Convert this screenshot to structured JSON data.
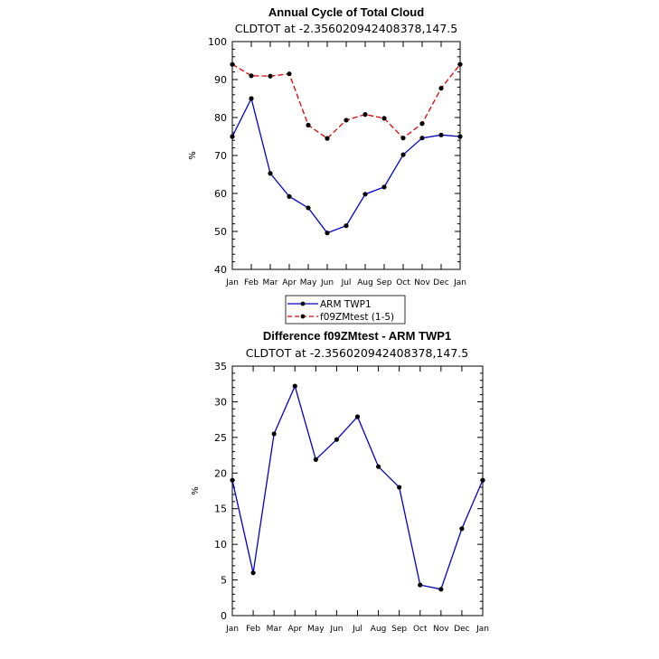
{
  "chart_data": [
    {
      "type": "line",
      "title": "Annual Cycle of Total Cloud",
      "subtitle": "CLDTOT at -2.356020942408378,147.5",
      "ylabel": "%",
      "ylim": [
        40,
        100
      ],
      "yticks": [
        40,
        50,
        60,
        70,
        80,
        90,
        100
      ],
      "categories": [
        "Jan",
        "Feb",
        "Mar",
        "Apr",
        "May",
        "Jun",
        "Jul",
        "Aug",
        "Sep",
        "Oct",
        "Nov",
        "Dec",
        "Jan"
      ],
      "series": [
        {
          "name": "ARM TWP1",
          "color": "#0000cc",
          "dash": "solid",
          "values": [
            75,
            85,
            65.3,
            59.2,
            56.2,
            49.6,
            51.5,
            59.8,
            61.7,
            70.2,
            74.6,
            75.4,
            75
          ]
        },
        {
          "name": "f09ZMtest (1-5)",
          "color": "#dd0000",
          "dash": "dashed",
          "values": [
            94,
            91,
            90.9,
            91.5,
            78,
            74.5,
            79.3,
            80.8,
            79.8,
            74.6,
            78.4,
            87.7,
            94
          ]
        }
      ],
      "legend_position": "below"
    },
    {
      "type": "line",
      "title": "Difference f09ZMtest - ARM TWP1",
      "subtitle": "CLDTOT at -2.356020942408378,147.5",
      "ylabel": "%",
      "ylim": [
        0,
        35
      ],
      "yticks": [
        0,
        5,
        10,
        15,
        20,
        25,
        30,
        35
      ],
      "categories": [
        "Jan",
        "Feb",
        "Mar",
        "Apr",
        "May",
        "Jun",
        "Jul",
        "Aug",
        "Sep",
        "Oct",
        "Nov",
        "Dec",
        "Jan"
      ],
      "series": [
        {
          "color": "#0000cc",
          "dash": "solid",
          "values": [
            19,
            6,
            25.5,
            32.2,
            21.9,
            24.7,
            27.9,
            20.9,
            18,
            4.3,
            3.7,
            12.2,
            19
          ]
        }
      ]
    }
  ]
}
